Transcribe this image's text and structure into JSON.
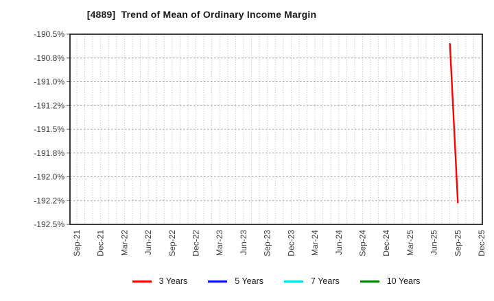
{
  "window": {
    "background": "#ffffff"
  },
  "chart_data": {
    "type": "line",
    "title": "[4889]  Trend of Mean of Ordinary Income Margin",
    "xlabel": "",
    "ylabel": "",
    "x_start_month": "Sep-21",
    "x_end_month": "Dec-25",
    "x_tick_labels": [
      "Sep-21",
      "Dec-21",
      "Mar-22",
      "Jun-22",
      "Sep-22",
      "Dec-22",
      "Mar-23",
      "Jun-23",
      "Sep-23",
      "Dec-23",
      "Mar-24",
      "Jun-24",
      "Sep-24",
      "Dec-24",
      "Mar-25",
      "Jun-25",
      "Sep-25",
      "Dec-25"
    ],
    "ylim": [
      -192.5,
      -190.5
    ],
    "y_ticks": [
      {
        "value": -190.5,
        "label": "-190.5%"
      },
      {
        "value": -190.75,
        "label": "-190.8%"
      },
      {
        "value": -191.0,
        "label": "-191.0%"
      },
      {
        "value": -191.25,
        "label": "-191.2%"
      },
      {
        "value": -191.5,
        "label": "-191.5%"
      },
      {
        "value": -191.75,
        "label": "-191.8%"
      },
      {
        "value": -192.0,
        "label": "-192.0%"
      },
      {
        "value": -192.25,
        "label": "-192.2%"
      },
      {
        "value": -192.5,
        "label": "-192.5%"
      }
    ],
    "grid": {
      "horizontal_style": "dashed",
      "vertical_style": "dotted",
      "vertical_frequency": "monthly",
      "visible": true
    },
    "legend_position": "bottom",
    "series": [
      {
        "name": "3 Years",
        "color": "#ff0000",
        "points": [
          {
            "x": "Aug-25",
            "y": -190.6
          },
          {
            "x": "Sep-25",
            "y": -192.27
          }
        ]
      },
      {
        "name": "5 Years",
        "color": "#0000ff",
        "points": []
      },
      {
        "name": "7 Years",
        "color": "#00e5e5",
        "points": []
      },
      {
        "name": "10 Years",
        "color": "#008000",
        "points": []
      }
    ],
    "colors": {
      "axis_frame": "#262626",
      "grid_horizontal": "#a0a0a0",
      "grid_vertical": "#b5b5b5",
      "tick_label": "#3a3a3a"
    }
  }
}
